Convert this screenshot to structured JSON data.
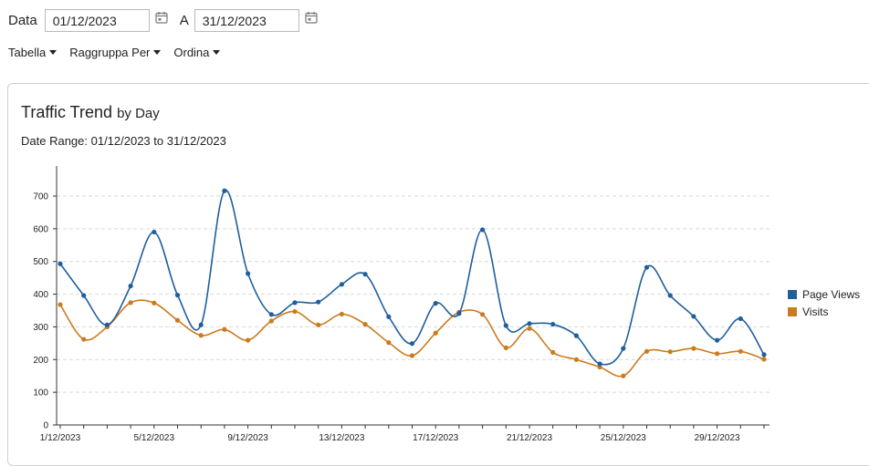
{
  "filters": {
    "date_label": "Data",
    "from_value": "01/12/2023",
    "to_label": "A",
    "to_value": "31/12/2023"
  },
  "menus": [
    {
      "label": "Tabella"
    },
    {
      "label": "Raggruppa Per"
    },
    {
      "label": "Ordina"
    }
  ],
  "chart_header": {
    "title": "Traffic Trend",
    "title_suffix": "by Day",
    "date_range": "Date Range: 01/12/2023 to 31/12/2023"
  },
  "colors": {
    "page_views": "#1f5f9c",
    "visits": "#cc7a1e",
    "grid": "#d9d9d9",
    "axis": "#333333"
  },
  "chart_data": {
    "type": "line",
    "title": "",
    "xlabel": "",
    "ylabel": "",
    "ylim": [
      0,
      700
    ],
    "y_ticks": [
      0,
      100,
      200,
      300,
      400,
      500,
      600,
      700
    ],
    "grid": true,
    "legend_placement": "right",
    "x_tick_labels": [
      "1/12/2023",
      "5/12/2023",
      "9/12/2023",
      "13/12/2023",
      "17/12/2023",
      "21/12/2023",
      "25/12/2023",
      "29/12/2023"
    ],
    "x": [
      "1/12/2023",
      "2/12/2023",
      "3/12/2023",
      "4/12/2023",
      "5/12/2023",
      "6/12/2023",
      "7/12/2023",
      "8/12/2023",
      "9/12/2023",
      "10/12/2023",
      "11/12/2023",
      "12/12/2023",
      "13/12/2023",
      "14/12/2023",
      "15/12/2023",
      "16/12/2023",
      "17/12/2023",
      "18/12/2023",
      "19/12/2023",
      "20/12/2023",
      "21/12/2023",
      "22/12/2023",
      "23/12/2023",
      "24/12/2023",
      "25/12/2023",
      "26/12/2023",
      "27/12/2023",
      "28/12/2023",
      "29/12/2023",
      "30/12/2023",
      "31/12/2023"
    ],
    "series": [
      {
        "name": "Page Views",
        "values": [
          493,
          396,
          306,
          425,
          590,
          397,
          306,
          716,
          463,
          338,
          374,
          376,
          430,
          461,
          331,
          249,
          372,
          341,
          597,
          304,
          310,
          308,
          273,
          187,
          234,
          482,
          396,
          332,
          259,
          325,
          215
        ]
      },
      {
        "name": "Visits",
        "values": [
          368,
          262,
          300,
          374,
          373,
          320,
          274,
          292,
          259,
          318,
          347,
          306,
          339,
          308,
          252,
          212,
          281,
          345,
          338,
          236,
          295,
          222,
          200,
          177,
          150,
          225,
          224,
          234,
          218,
          225,
          201
        ]
      }
    ]
  }
}
